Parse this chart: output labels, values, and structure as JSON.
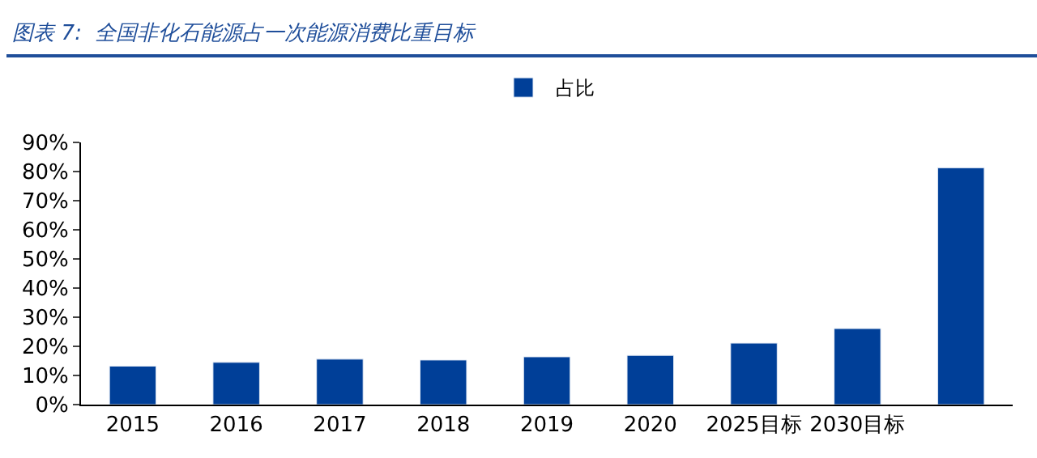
{
  "chart_data": {
    "type": "bar",
    "title": "图表 7:  全国非化石能源占一次能源消费比重目标",
    "categories": [
      "2015",
      "2016",
      "2017",
      "2018",
      "2019",
      "2020",
      "2025目标",
      "2030目标",
      null
    ],
    "series": [
      {
        "name": "占比",
        "color": "#003f98",
        "values": [
          13.2,
          14.5,
          15.6,
          15.3,
          16.4,
          16.9,
          21.1,
          26.1,
          81.3
        ]
      }
    ],
    "ylim": [
      0,
      90
    ],
    "yticks": [
      {
        "value": 0,
        "label": "0%"
      },
      {
        "value": 10,
        "label": "10%"
      },
      {
        "value": 20,
        "label": "20%"
      },
      {
        "value": 30,
        "label": "30%"
      },
      {
        "value": 40,
        "label": "40%"
      },
      {
        "value": 50,
        "label": "50%"
      },
      {
        "value": 60,
        "label": "60%"
      },
      {
        "value": 70,
        "label": "70%"
      },
      {
        "value": 80,
        "label": "80%"
      },
      {
        "value": 90,
        "label": "90%"
      }
    ],
    "legend": "top"
  }
}
